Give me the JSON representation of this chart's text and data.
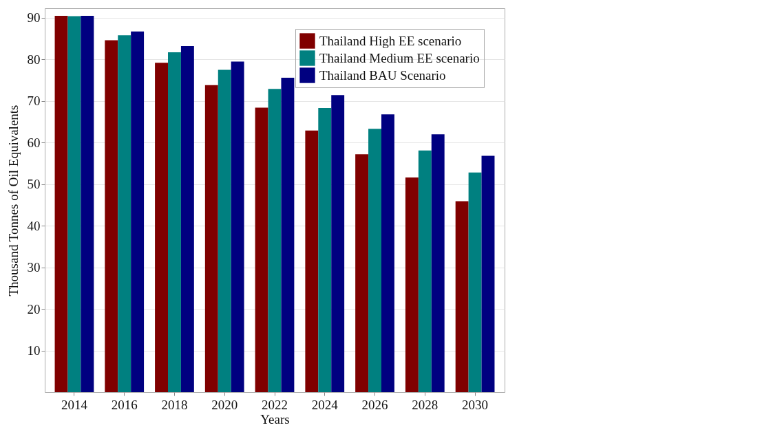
{
  "chart_data": {
    "type": "bar",
    "xlabel": "Years",
    "ylabel": "Thousand Tonnes of Oil Equivalents",
    "categories": [
      "2014",
      "2016",
      "2018",
      "2020",
      "2022",
      "2024",
      "2026",
      "2028",
      "2030"
    ],
    "series": [
      {
        "name": "Thailand High EE scenario",
        "color": "#800000",
        "values": [
          90.5,
          84.6,
          79.2,
          73.8,
          68.4,
          62.9,
          57.2,
          51.6,
          45.9
        ]
      },
      {
        "name": "Thailand Medium EE scenario",
        "color": "#008080",
        "values": [
          90.4,
          85.8,
          81.7,
          77.5,
          72.9,
          68.3,
          63.3,
          58.1,
          52.8
        ]
      },
      {
        "name": "Thailand BAU Scenario",
        "color": "#000080",
        "values": [
          90.5,
          86.7,
          83.2,
          79.5,
          75.6,
          71.4,
          66.8,
          62.0,
          56.8
        ]
      }
    ],
    "ylim": [
      0,
      92.3
    ],
    "yticks": [
      10,
      20,
      30,
      40,
      50,
      60,
      70,
      80,
      90
    ],
    "grid": "y",
    "legend": "top right"
  }
}
